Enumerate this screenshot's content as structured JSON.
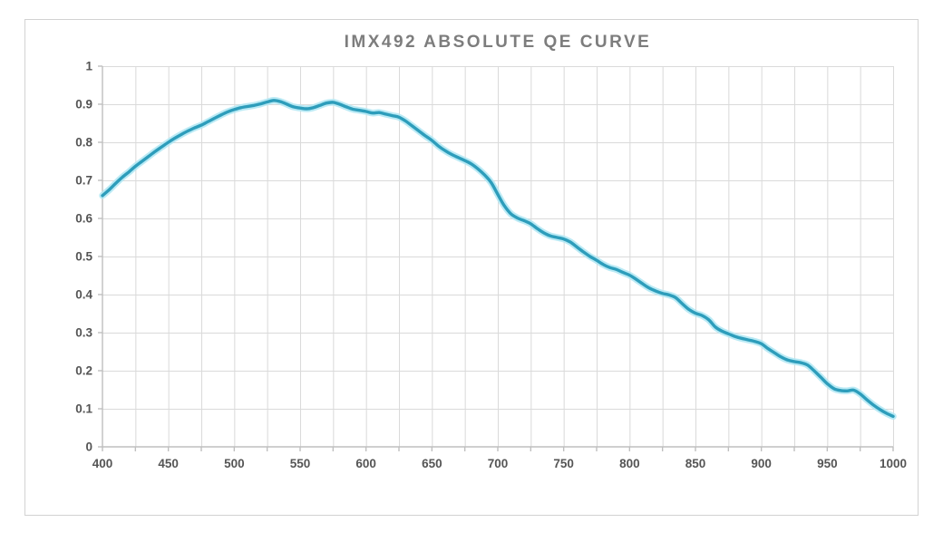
{
  "colors": {
    "curve": "#2d9dbb",
    "curve_glow": "#aee6f3",
    "gridline": "#dadada",
    "axis_line": "#bfbfbf",
    "tick_label": "#555555",
    "title": "#7d7d7d",
    "frame_border": "#d2d2d2",
    "background": "#ffffff"
  },
  "chart_data": {
    "type": "line",
    "title": "IMX492 ABSOLUTE QE CURVE",
    "xlabel": "",
    "ylabel": "",
    "xlim": [
      400,
      1000
    ],
    "ylim": [
      0,
      1
    ],
    "grid": true,
    "legend": false,
    "x_major_tick_step": 50,
    "x_gridline_step": 25,
    "y_gridline_step": 0.1,
    "x_tick_labels": [
      "400",
      "450",
      "500",
      "550",
      "600",
      "650",
      "700",
      "750",
      "800",
      "850",
      "900",
      "950",
      "1000"
    ],
    "y_tick_labels": [
      "0",
      "0.1",
      "0.2",
      "0.3",
      "0.4",
      "0.5",
      "0.6",
      "0.7",
      "0.8",
      "0.9",
      "1"
    ],
    "series": [
      {
        "name": "IMX492 absolute QE",
        "x": [
          400,
          405,
          410,
          415,
          420,
          425,
          430,
          435,
          440,
          445,
          450,
          455,
          460,
          465,
          470,
          475,
          480,
          485,
          490,
          495,
          500,
          505,
          510,
          515,
          520,
          525,
          530,
          535,
          540,
          545,
          550,
          555,
          560,
          565,
          570,
          575,
          580,
          585,
          590,
          595,
          600,
          605,
          610,
          615,
          620,
          625,
          630,
          635,
          640,
          645,
          650,
          655,
          660,
          665,
          670,
          675,
          680,
          685,
          690,
          695,
          700,
          705,
          710,
          715,
          720,
          725,
          730,
          735,
          740,
          745,
          750,
          755,
          760,
          765,
          770,
          775,
          780,
          785,
          790,
          795,
          800,
          805,
          810,
          815,
          820,
          825,
          830,
          835,
          840,
          845,
          850,
          855,
          860,
          865,
          870,
          875,
          880,
          885,
          890,
          895,
          900,
          905,
          910,
          915,
          920,
          925,
          930,
          935,
          940,
          945,
          950,
          955,
          960,
          965,
          970,
          975,
          980,
          985,
          990,
          995,
          1000
        ],
        "y": [
          0.66,
          0.675,
          0.692,
          0.708,
          0.722,
          0.737,
          0.75,
          0.763,
          0.776,
          0.788,
          0.8,
          0.811,
          0.821,
          0.83,
          0.838,
          0.845,
          0.854,
          0.863,
          0.872,
          0.88,
          0.886,
          0.891,
          0.894,
          0.897,
          0.901,
          0.906,
          0.91,
          0.907,
          0.9,
          0.893,
          0.89,
          0.888,
          0.891,
          0.897,
          0.903,
          0.905,
          0.9,
          0.893,
          0.887,
          0.884,
          0.881,
          0.877,
          0.878,
          0.874,
          0.87,
          0.866,
          0.856,
          0.843,
          0.83,
          0.817,
          0.805,
          0.79,
          0.778,
          0.768,
          0.76,
          0.752,
          0.743,
          0.73,
          0.714,
          0.694,
          0.663,
          0.633,
          0.612,
          0.601,
          0.594,
          0.586,
          0.573,
          0.562,
          0.554,
          0.55,
          0.546,
          0.538,
          0.525,
          0.512,
          0.5,
          0.49,
          0.479,
          0.471,
          0.466,
          0.458,
          0.451,
          0.44,
          0.428,
          0.417,
          0.409,
          0.403,
          0.399,
          0.392,
          0.376,
          0.361,
          0.351,
          0.345,
          0.334,
          0.315,
          0.304,
          0.297,
          0.29,
          0.285,
          0.281,
          0.277,
          0.271,
          0.258,
          0.247,
          0.236,
          0.228,
          0.224,
          0.221,
          0.215,
          0.2,
          0.183,
          0.166,
          0.153,
          0.148,
          0.147,
          0.149,
          0.139,
          0.124,
          0.11,
          0.098,
          0.088,
          0.08
        ]
      }
    ]
  }
}
